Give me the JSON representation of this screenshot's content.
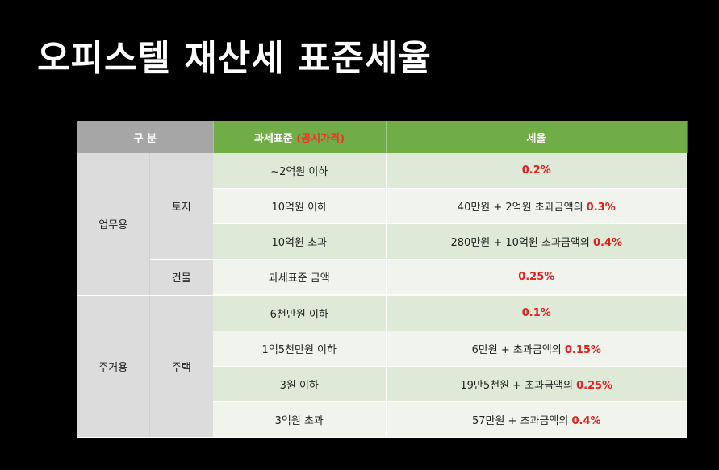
{
  "title": "오피스텔 재산세 표준세율",
  "colors": {
    "header_gray": "#a6a6a6",
    "header_green": "#70ad47",
    "highlight_red": "#e0201b"
  },
  "table": {
    "header": {
      "category": "구 분",
      "base_prefix": "과세표준 ",
      "base_paren": "(공시가격)",
      "rate": "세율"
    },
    "groups": {
      "business": "업무용",
      "residential": "주거용"
    },
    "subgroups": {
      "land": "토지",
      "building": "건물",
      "housing": "주택"
    },
    "rows": [
      {
        "base": "~2억원 이하",
        "rate_text": "",
        "rate_pct": "0.2%"
      },
      {
        "base": "10억원 이하",
        "rate_text": "40만원 + 2억원 초과금액의 ",
        "rate_pct": "0.3%"
      },
      {
        "base": "10억원 초과",
        "rate_text": "280만원 + 10억원 초과금액의 ",
        "rate_pct": "0.4%"
      },
      {
        "base": "과세표준 금액",
        "rate_text": "",
        "rate_pct": "0.25%"
      },
      {
        "base": "6천만원 이하",
        "rate_text": "",
        "rate_pct": "0.1%"
      },
      {
        "base": "1억5천만원 이하",
        "rate_text": "6만원 + 초과금액의 ",
        "rate_pct": "0.15%"
      },
      {
        "base": "3원 이하",
        "rate_text": "19만5천원 + 초과금액의 ",
        "rate_pct": "0.25%"
      },
      {
        "base": "3억원 초과",
        "rate_text": "57만원 + 초과금액의 ",
        "rate_pct": "0.4%"
      }
    ]
  }
}
